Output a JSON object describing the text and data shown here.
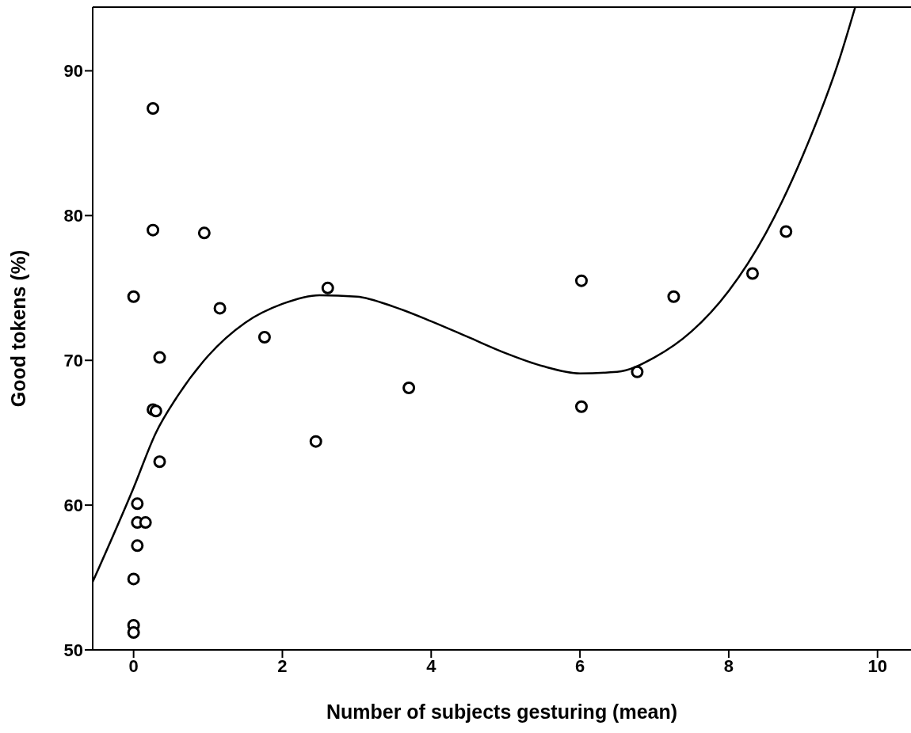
{
  "chart_data": {
    "type": "scatter",
    "xlabel": "Number of subjects gesturing (mean)",
    "ylabel": "Good tokens (%)",
    "xlim": [
      -0.55,
      10.45
    ],
    "xticks": [
      0,
      2,
      4,
      6,
      8,
      10
    ],
    "ylim": [
      50,
      94.4
    ],
    "yticks": [
      50,
      60,
      70,
      80,
      90
    ],
    "grid": false,
    "legend": false,
    "marker": "circle",
    "series": [
      {
        "type": "scatter",
        "color": "#000000",
        "x": [
          0.26,
          0.26,
          0.95,
          0,
          1.16,
          0.35,
          1.76,
          2.61,
          0.26,
          0.3,
          2.45,
          3.7,
          0.35,
          0.05,
          0.05,
          0.16,
          0.05,
          0,
          0,
          0,
          6.02,
          6.02,
          6.77,
          7.26,
          8.32,
          8.77
        ],
        "values": [
          87.4,
          79.0,
          78.8,
          74.4,
          73.6,
          70.2,
          71.6,
          75.0,
          66.6,
          66.5,
          64.4,
          68.1,
          63.0,
          60.1,
          58.8,
          58.8,
          57.2,
          54.9,
          51.7,
          51.2,
          75.5,
          66.8,
          69.2,
          74.4,
          76.0,
          78.9
        ]
      },
      {
        "type": "line",
        "color": "#000000",
        "marker": "none",
        "x": [
          -0.55,
          0,
          0.3,
          0.6,
          1,
          1.5,
          2,
          2.5,
          3,
          3.5,
          4,
          4.5,
          5,
          5.5,
          6,
          6.5,
          7,
          7.5,
          8,
          8.5,
          9,
          9.5,
          9.7
        ],
        "values": [
          54.7,
          61.2,
          65,
          67.6,
          70.3,
          72.6,
          73.9,
          74.5,
          74.4,
          73.7,
          72.7,
          71.6,
          70.5,
          69.6,
          69.1,
          69.2,
          70.2,
          72,
          74.8,
          78.8,
          84.2,
          91,
          94.4
        ]
      }
    ]
  }
}
